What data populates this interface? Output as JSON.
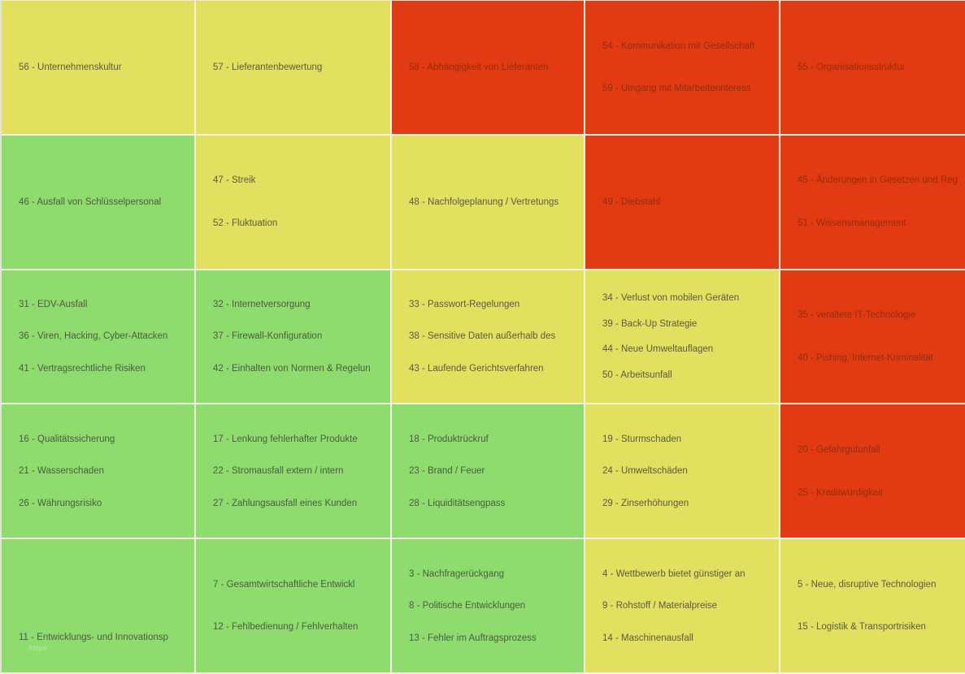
{
  "colors": {
    "low_risk_green": "#8edc6d",
    "medium_risk_yellow": "#e2e05f",
    "high_risk_red": "#e23a12",
    "grid_line": "#f2f1e4"
  },
  "watermark": "https",
  "chart_data": {
    "type": "heatmap",
    "grid_size": {
      "columns": 5,
      "rows": 5
    },
    "legend": [
      {
        "color": "#8edc6d",
        "meaning": "green cell"
      },
      {
        "color": "#e2e05f",
        "meaning": "yellow cell"
      },
      {
        "color": "#e23a12",
        "meaning": "red cell"
      }
    ],
    "rows": [
      {
        "cells": [
          {
            "color": "yellow",
            "items": [
              "56 - Unternehmenskultur"
            ]
          },
          {
            "color": "yellow",
            "items": [
              "57 - Lieferantenbewertung"
            ]
          },
          {
            "color": "red",
            "items": [
              "58 - Abhängigkeit von Lieferanten"
            ]
          },
          {
            "color": "red",
            "items": [
              "54 - Kommunikation mit Gesellschaft",
              "59 - Umgang mit Mitarbeiterinteress"
            ]
          },
          {
            "color": "red",
            "items": [
              "55 - Organisationsstruktur"
            ]
          }
        ]
      },
      {
        "cells": [
          {
            "color": "green",
            "items": [
              "46 - Ausfall von Schlüsselpersonal"
            ]
          },
          {
            "color": "yellow",
            "items": [
              "47 - Streik",
              "52 - Fluktuation"
            ]
          },
          {
            "color": "yellow",
            "items": [
              "48 - Nachfolgeplanung / Vertretungs"
            ]
          },
          {
            "color": "red",
            "items": [
              "49 - Diebstahl"
            ]
          },
          {
            "color": "red",
            "items": [
              "45 - Änderungen in Gesetzen und Reg",
              "51 - Wissensmanagement"
            ]
          }
        ]
      },
      {
        "cells": [
          {
            "color": "green",
            "items": [
              "31 - EDV-Ausfall",
              "36 - Viren, Hacking, Cyber-Attacken",
              "41 - Vertragsrechtliche Risiken"
            ]
          },
          {
            "color": "green",
            "items": [
              "32 - Internetversorgung",
              "37 - Firewall-Konfiguration",
              "42 - Einhalten von Normen & Regelun"
            ]
          },
          {
            "color": "yellow",
            "items": [
              "33 - Passwort-Regelungen",
              "38 - Sensitive Daten außerhalb des",
              "43 - Laufende Gerichtsverfahren"
            ]
          },
          {
            "color": "yellow",
            "items": [
              "34 - Verlust von mobilen Geräten",
              "39 - Back-Up Strategie",
              "44 - Neue Umweltauflagen",
              "50 - Arbeitsunfall"
            ]
          },
          {
            "color": "red",
            "items": [
              "35 - veraltete IT-Technologie",
              "40 - Pishing, Internet-Kriminalität"
            ]
          }
        ]
      },
      {
        "cells": [
          {
            "color": "green",
            "items": [
              "16 - Qualitätssicherung",
              "21 - Wasserschaden",
              "26 - Währungsrisiko"
            ]
          },
          {
            "color": "green",
            "items": [
              "17 - Lenkung fehlerhafter Produkte",
              "22 - Stromausfall extern / intern",
              "27 - Zahlungsausfall eines Kunden"
            ]
          },
          {
            "color": "green",
            "items": [
              "18 - Produktrückruf",
              "23 - Brand / Feuer",
              "28 - Liquiditätsengpass"
            ]
          },
          {
            "color": "yellow",
            "items": [
              "19 - Sturmschaden",
              "24 - Umweltschäden",
              "29 - Zinserhöhungen"
            ]
          },
          {
            "color": "red",
            "items": [
              "20 - Gefahrgutunfall",
              "25 - Kreditwürdigkeit"
            ]
          }
        ]
      },
      {
        "cells": [
          {
            "color": "green",
            "items": [
              "11 - Entwicklungs- und Innovationsp"
            ],
            "valign": "low",
            "watermark": true
          },
          {
            "color": "green",
            "items": [
              "7 - Gesamtwirtschaftliche Entwickl",
              "12 - Fehlbedienung / Fehlverhalten"
            ]
          },
          {
            "color": "green",
            "items": [
              "3 - Nachfragerückgang",
              "8 - Politische Entwicklungen",
              "13 - Fehler im Auftragsprozess"
            ]
          },
          {
            "color": "yellow",
            "items": [
              "4 - Wettbewerb bietet günstiger an",
              "9 - Rohstoff / Materialpreise",
              "14 - Maschinenausfall"
            ]
          },
          {
            "color": "yellow",
            "items": [
              "5 - Neue, disruptive Technologien",
              "15 - Logistik & Transportrisiken"
            ]
          }
        ]
      }
    ]
  }
}
